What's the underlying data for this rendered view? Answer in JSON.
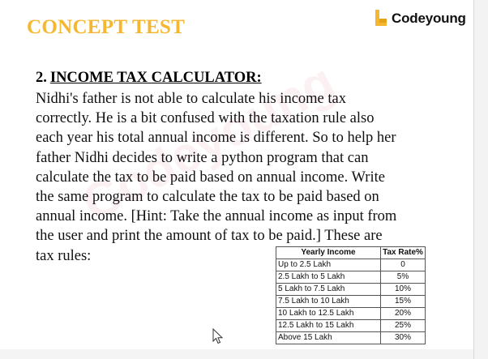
{
  "header": {
    "title": "CONCEPT TEST",
    "brand": {
      "name": "Codeyoung",
      "icon": "codeyoung-logo-icon",
      "accent": "#f5b731"
    }
  },
  "watermark": {
    "text": "Codeyoung"
  },
  "question": {
    "number": "2.",
    "title": "INCOME TAX CALCULATOR:",
    "lines": [
      "Nidhi's father is not able to calculate his income tax",
      "correctly. He is a bit confused with the taxation rule also",
      "each year his total annual income is different. So to help her",
      "father Nidhi decides to write a python program that can",
      "calculate the tax to be paid based on annual income. Write",
      "the same program to calculate the tax to be paid based on",
      "annual income. [Hint: Take the annual income as input from",
      "the user and print the amount of tax to be paid.] These are",
      "tax rules:"
    ]
  },
  "tax_table": {
    "headers": [
      "Yearly Income",
      "Tax Rate%"
    ],
    "rows": [
      [
        "Up to 2.5 Lakh",
        "0"
      ],
      [
        "2.5 Lakh to 5 Lakh",
        "5%"
      ],
      [
        "5 Lakh to 7.5 Lakh",
        "10%"
      ],
      [
        "7.5 Lakh to 10 Lakh",
        "15%"
      ],
      [
        "10 Lakh to 12.5 Lakh",
        "20%"
      ],
      [
        "12.5 Lakh to 15 Lakh",
        "25%"
      ],
      [
        "Above 15 Lakh",
        "30%"
      ]
    ]
  },
  "cursor": {
    "icon": "mouse-pointer-icon"
  }
}
